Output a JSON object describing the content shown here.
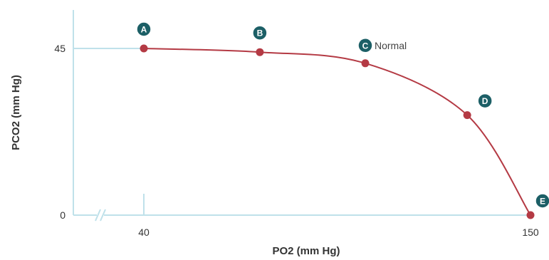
{
  "chart_data": {
    "type": "line",
    "title": "",
    "xlabel": "PO2 (mm Hg)",
    "ylabel": "PCO2 (mm Hg)",
    "xlim": [
      40,
      150
    ],
    "ylim": [
      0,
      45
    ],
    "x_ticks": [
      "40",
      "150"
    ],
    "y_ticks": [
      "45",
      "0"
    ],
    "axis_break": "x",
    "grid": false,
    "legend": "none",
    "curve_color": "#b43a44",
    "axis_color": "#bfe1ea",
    "marker_color": "#1c5f66",
    "series": [
      {
        "x": [
          40,
          73,
          103,
          132,
          150
        ],
        "y": [
          45,
          44,
          41,
          27,
          0
        ],
        "points": [
          {
            "label": "A",
            "x": 40,
            "y": 45
          },
          {
            "label": "B",
            "x": 73,
            "y": 44
          },
          {
            "label": "C",
            "x": 103,
            "y": 41
          },
          {
            "label": "D",
            "x": 132,
            "y": 27
          },
          {
            "label": "E",
            "x": 150,
            "y": 0
          }
        ]
      }
    ],
    "annotations": [
      {
        "text": "Normal",
        "x": 103,
        "y": 41
      }
    ]
  }
}
